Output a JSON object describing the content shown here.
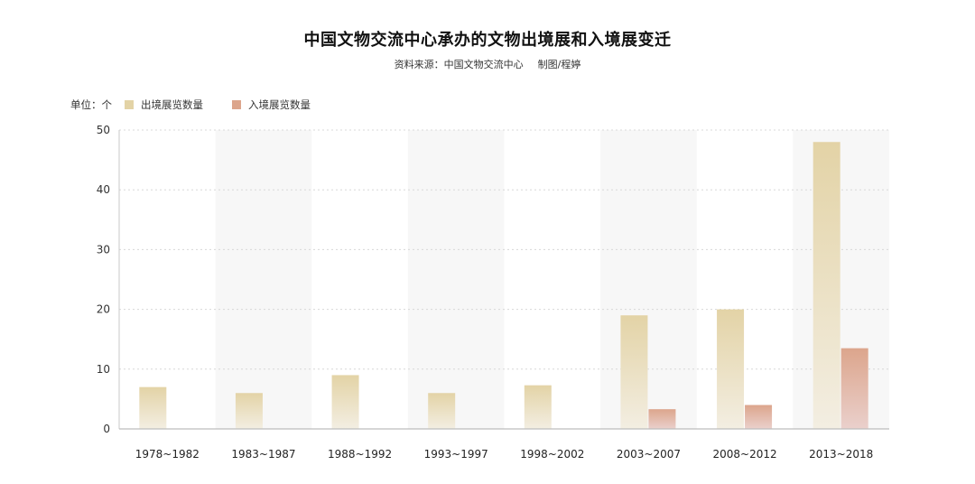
{
  "chart_data": {
    "type": "bar",
    "title": "中国文物交流中心承办的文物出境展和入境展变迁",
    "subtitle_source": "资料来源：中国文物交流中心",
    "subtitle_credit": "制图/程婷",
    "unit_label": "单位：个",
    "categories": [
      "1978~1982",
      "1983~1987",
      "1988~1992",
      "1993~1997",
      "1998~2002",
      "2003~2007",
      "2008~2012",
      "2013~2018"
    ],
    "series": [
      {
        "name": "出境展览数量",
        "values": [
          7,
          6,
          9,
          6,
          7.3,
          19,
          20,
          48
        ],
        "color_top": "#e3d3a6",
        "color_bottom": "#f3eee2"
      },
      {
        "name": "入境展览数量",
        "values": [
          0,
          0,
          0,
          0,
          0,
          3.3,
          4,
          13.5
        ],
        "color_top": "#dca58c",
        "color_bottom": "#ead0cc"
      }
    ],
    "y_ticks": [
      "0",
      "10",
      "20",
      "30",
      "40",
      "50"
    ],
    "ylim": [
      0,
      50
    ],
    "grid": true,
    "legend_position": "top-left"
  }
}
